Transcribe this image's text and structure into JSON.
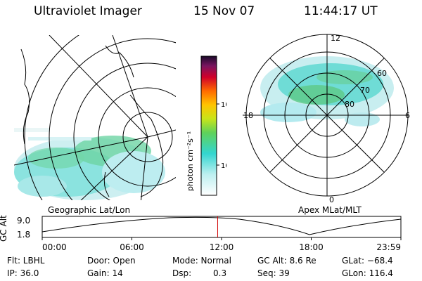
{
  "header": {
    "instrument": "Ultraviolet Imager",
    "date": "15 Nov 07",
    "time": "11:44:17 UT"
  },
  "colorbar": {
    "unit_label": "photon cm⁻²s⁻¹",
    "ticks": [
      "100",
      "10"
    ]
  },
  "polar": {
    "mlt_labels": [
      "12",
      "18",
      "6",
      "0"
    ],
    "lat_labels": [
      "60",
      "70",
      "80"
    ]
  },
  "panel_labels": {
    "geo": "Geographic Lat/Lon",
    "apex": "Apex MLat/MLT"
  },
  "alt_plot": {
    "ylabel": "GC Alt",
    "ymax": "9.0",
    "ymin": "1.8",
    "time_ticks": [
      "00:00",
      "06:00",
      "12:00",
      "18:00",
      "23:59"
    ],
    "marker_hour": 11.74,
    "marker_color": "#d00000"
  },
  "info": {
    "filter": "Flt: LBHL",
    "ip": "IP: 36.0",
    "door": "Door: Open",
    "gain": "Gain: 14",
    "mode": "Mode: Normal",
    "dsp_label": "Dsp:",
    "dsp_value": "0.3",
    "gc_alt": "GC Alt: 8.6 Re",
    "seq": "Seq: 39",
    "glat": "GLat: −68.4",
    "glon": "GLon: 116.4"
  }
}
